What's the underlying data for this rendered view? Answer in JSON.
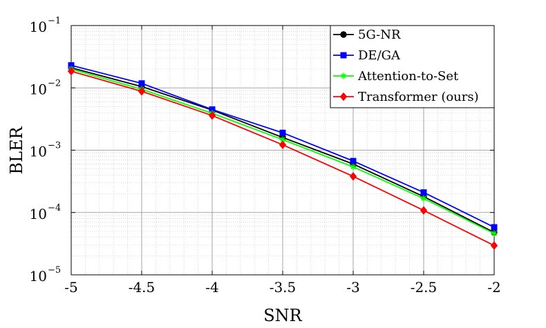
{
  "chart_data": {
    "type": "line",
    "xlabel": "SNR",
    "ylabel": "BLER",
    "yscale": "log",
    "xlim": [
      -5,
      -2
    ],
    "ylim": [
      1e-05,
      0.1
    ],
    "x": [
      -5,
      -4.5,
      -4,
      -3.5,
      -3,
      -2.5,
      -2
    ],
    "x_tick_labels": [
      "-5",
      "-4.5",
      "-4",
      "-3.5",
      "-3",
      "-2.5",
      "-2"
    ],
    "y_ticks": [
      {
        "base": "10",
        "exp": "−1",
        "value": 0.1
      },
      {
        "base": "10",
        "exp": "−2",
        "value": 0.01
      },
      {
        "base": "10",
        "exp": "−3",
        "value": 0.001
      },
      {
        "base": "10",
        "exp": "−4",
        "value": 0.0001
      },
      {
        "base": "10",
        "exp": "−5",
        "value": 1e-05
      }
    ],
    "grid": true,
    "legend_position": "top-right",
    "series": [
      {
        "name": "5G-NR",
        "color": "#000000",
        "marker": "circle",
        "values": [
          0.021,
          0.0105,
          0.0044,
          0.0016,
          0.0006,
          0.00018,
          4.8e-05
        ]
      },
      {
        "name": "DE/GA",
        "color": "#0000ff",
        "marker": "square",
        "values": [
          0.023,
          0.0118,
          0.0045,
          0.0019,
          0.00067,
          0.00021,
          5.8e-05
        ]
      },
      {
        "name": "Attention-to-Set",
        "color": "#00ff00",
        "marker": "asterisk",
        "values": [
          0.02,
          0.0095,
          0.0039,
          0.00148,
          0.00054,
          0.000168,
          4.6e-05
        ]
      },
      {
        "name": "Transformer (ours)",
        "color": "#ff0000",
        "marker": "diamond",
        "values": [
          0.0185,
          0.0088,
          0.0036,
          0.00122,
          0.00038,
          0.000108,
          2.95e-05
        ]
      }
    ]
  }
}
